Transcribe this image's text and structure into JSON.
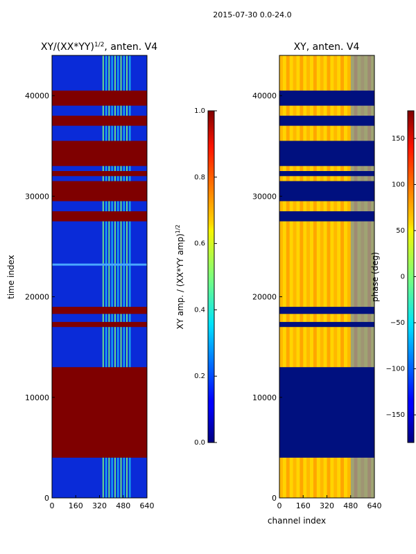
{
  "suptitle": "2015-07-30 0.0-24.0",
  "chart_data": [
    {
      "type": "heatmap",
      "title_main": "XY/(XX*YY)",
      "title_sup": "1/2",
      "title_tail": ", anten. V4",
      "xlabel": "",
      "ylabel": "time index",
      "xlim": [
        0,
        640
      ],
      "ylim": [
        0,
        44000
      ],
      "xticks": [
        0,
        160,
        320,
        480,
        640
      ],
      "yticks": [
        0,
        10000,
        20000,
        30000,
        40000
      ],
      "colorbar": {
        "label_main": "XY amp. / (XX*YY amp)",
        "label_sup": "1/2",
        "range": [
          0.0,
          1.0
        ],
        "ticks": [
          "0.0",
          "0.2",
          "0.4",
          "0.6",
          "0.8",
          "1.0"
        ]
      },
      "saturated_time_bands": [
        [
          0,
          0
        ],
        [
          4000,
          13000
        ],
        [
          17000,
          17500
        ],
        [
          18300,
          19000
        ],
        [
          27500,
          28500
        ],
        [
          29500,
          31500
        ],
        [
          32000,
          32500
        ],
        [
          33000,
          35500
        ],
        [
          37000,
          38000
        ],
        [
          39000,
          40500
        ]
      ],
      "description_values": {
        "background_level": 0.1,
        "saturated_level": 1.0,
        "active_channel_range": [
          340,
          540
        ]
      }
    },
    {
      "type": "heatmap",
      "title_main": "XY, anten. V4",
      "xlabel": "channel index",
      "ylabel": "",
      "xlim": [
        0,
        640
      ],
      "ylim": [
        0,
        44000
      ],
      "xticks": [
        0,
        160,
        320,
        480,
        640
      ],
      "yticks": [
        0,
        10000,
        20000,
        30000,
        40000
      ],
      "colorbar": {
        "label_main": "phase (deg)",
        "range": [
          -180,
          180
        ],
        "ticks": [
          "−150",
          "−100",
          "−50",
          "0",
          "50",
          "100",
          "150"
        ],
        "tick_values": [
          -150,
          -100,
          -50,
          0,
          50,
          100,
          150
        ]
      },
      "low_phase_time_bands": [
        [
          4000,
          13000
        ],
        [
          17000,
          17500
        ],
        [
          18300,
          19000
        ],
        [
          27500,
          28500
        ],
        [
          29500,
          31500
        ],
        [
          32000,
          32500
        ],
        [
          33000,
          35500
        ],
        [
          37000,
          38000
        ],
        [
          39000,
          40500
        ]
      ]
    }
  ]
}
